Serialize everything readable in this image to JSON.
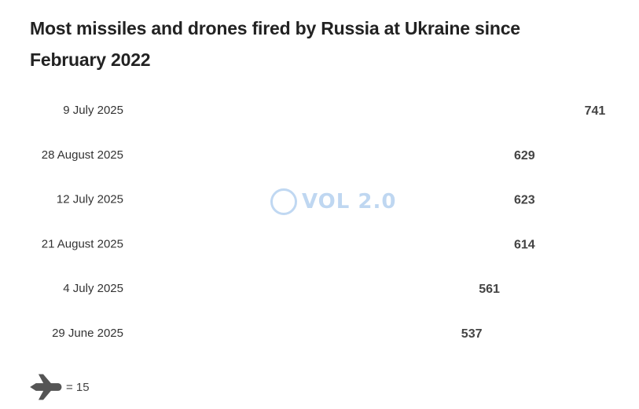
{
  "title": "Most missiles and drones fired by Russia at Ukraine since February 2022",
  "legend": {
    "icon": "plane-icon",
    "text": "= 15",
    "unit_per_icon": 15
  },
  "watermark": {
    "text": "VOL 2.0",
    "icon": "globe-icon"
  },
  "chart_data": {
    "type": "bar",
    "style": "pictogram",
    "orientation": "horizontal",
    "unit_per_icon": 15,
    "categories": [
      "9 July 2025",
      "28 August 2025",
      "12 July 2025",
      "21 August 2025",
      "4 July 2025",
      "29 June 2025"
    ],
    "values": [
      741,
      629,
      623,
      614,
      561,
      537
    ],
    "colors": [
      "#5b9bd5",
      "#4d1010",
      "#7a1418",
      "#b02a30",
      "#de2a2a",
      "#ec6f72"
    ]
  }
}
